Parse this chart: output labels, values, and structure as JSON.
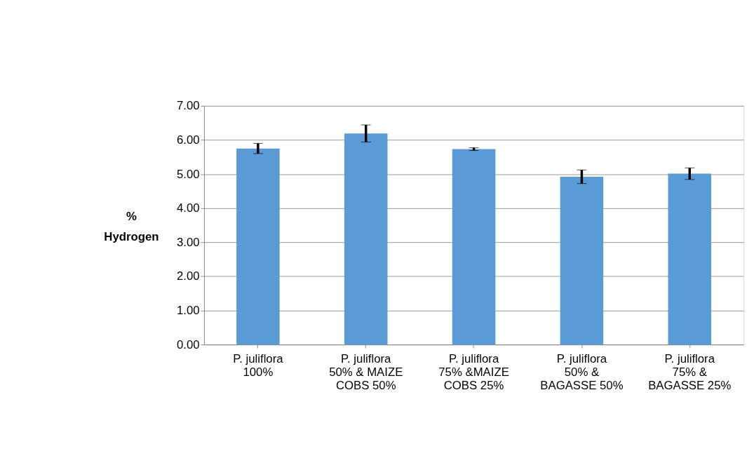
{
  "chart_data": {
    "type": "bar",
    "ylabel": "%\nHydrogen",
    "categories": [
      "P. juliflora\n100%",
      "P. juliflora\n50% & MAIZE\nCOBS 50%",
      "P. juliflora\n75% &MAIZE\nCOBS 25%",
      "P. juliflora\n50% &\nBAGASSE 50%",
      "P. juliflora\n75% &\nBAGASSE 25%"
    ],
    "values": [
      5.75,
      6.19,
      5.73,
      4.92,
      5.01
    ],
    "errors": [
      0.15,
      0.25,
      0.04,
      0.2,
      0.17
    ],
    "color": "#5b9bd5",
    "ylim": [
      0,
      7
    ],
    "yticks": [
      {
        "value": 0,
        "label": "0.00"
      },
      {
        "value": 1,
        "label": "1.00"
      },
      {
        "value": 2,
        "label": "2.00"
      },
      {
        "value": 3,
        "label": "3.00"
      },
      {
        "value": 4,
        "label": "4.00"
      },
      {
        "value": 5,
        "label": "5.00"
      },
      {
        "value": 6,
        "label": "6.00"
      },
      {
        "value": 7,
        "label": "7.00"
      }
    ],
    "grid": "y"
  }
}
